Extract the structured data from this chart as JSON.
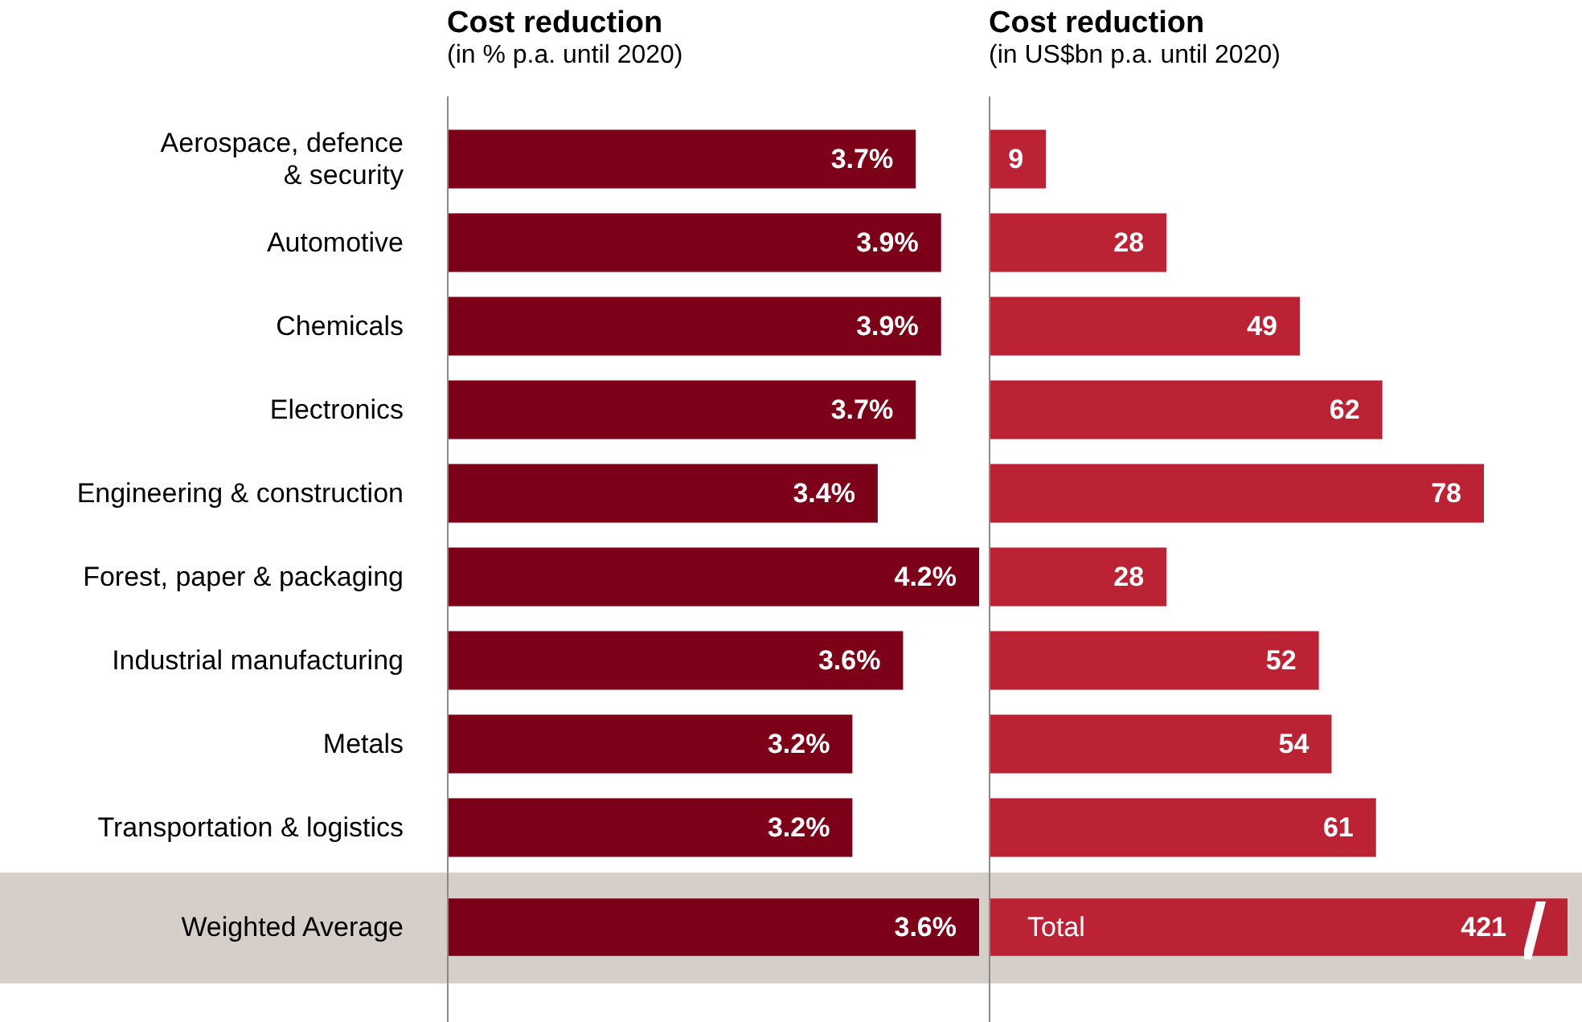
{
  "chart_data": [
    {
      "type": "bar",
      "orientation": "horizontal",
      "title": "Cost reduction",
      "subtitle": "(in % p.a. until 2020)",
      "categories": [
        "Aerospace, defence & security",
        "Automotive",
        "Chemicals",
        "Electronics",
        "Engineering & construction",
        "Forest, paper & packaging",
        "Industrial manufacturing",
        "Metals",
        "Transportation & logistics"
      ],
      "values": [
        3.7,
        3.9,
        3.9,
        3.7,
        3.4,
        4.2,
        3.6,
        3.2,
        3.2
      ],
      "value_labels": [
        "3.7%",
        "3.9%",
        "3.9%",
        "3.7%",
        "3.4%",
        "4.2%",
        "3.6%",
        "3.2%",
        "3.2%"
      ],
      "color": "#7d0019",
      "tick_labels": "y"
    },
    {
      "type": "bar",
      "orientation": "horizontal",
      "title": "Cost reduction",
      "subtitle": "(in US$bn p.a. until 2020)",
      "categories": [
        null,
        null,
        null,
        null,
        null,
        null,
        null,
        null,
        null
      ],
      "values": [
        9,
        28,
        49,
        62,
        78,
        28,
        52,
        54,
        61
      ],
      "data_labels": true,
      "color": "#bb2233",
      "tick_labels": false
    },
    {
      "type": "bar",
      "orientation": "horizontal",
      "categories": [
        "Weighted Average"
      ],
      "values": [
        3.6
      ],
      "value_labels": [
        "3.6%"
      ],
      "color": "#7d0019",
      "tick_labels": "y",
      "bands": [
        {
          "axis": "y",
          "from": "Weighted Average",
          "to": "Weighted Average",
          "color": "#d6cec8"
        }
      ]
    },
    {
      "type": "bar",
      "orientation": "horizontal",
      "categories": [
        "Total"
      ],
      "values": [
        421
      ],
      "data_labels": true,
      "color": "#bb2233",
      "tick_labels": "y",
      "bands": [
        {
          "axis": "y",
          "from": "Total",
          "to": "Total",
          "color": "#d6cec8"
        }
      ]
    }
  ]
}
